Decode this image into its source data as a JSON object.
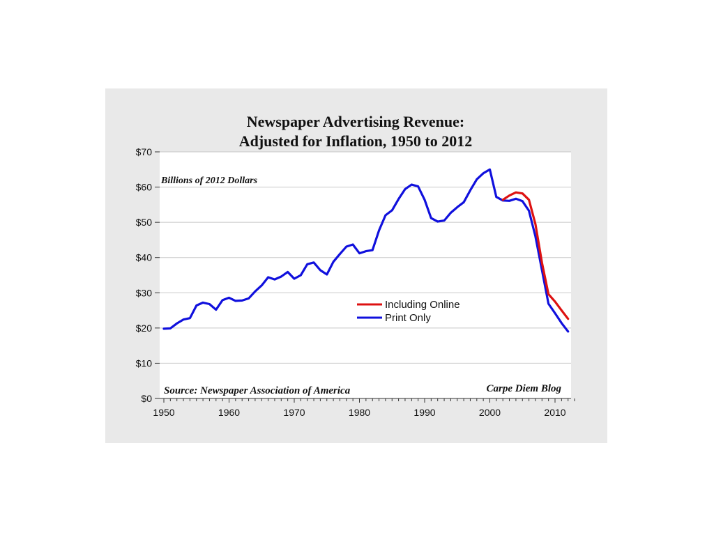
{
  "chart_data": {
    "type": "line",
    "title": "Newspaper Advertising Revenue:",
    "subtitle": "Adjusted for Inflation, 1950 to 2012",
    "units_note": "Billions of 2012 Dollars",
    "source": "Source: Newspaper Association of America",
    "credit": "Carpe Diem Blog",
    "xlabel": "",
    "ylabel": "",
    "xlim": [
      1950,
      2013
    ],
    "ylim": [
      0,
      70
    ],
    "x_ticks": [
      "1950",
      "1960",
      "1970",
      "1980",
      "1990",
      "2000",
      "2010"
    ],
    "y_ticks": [
      "$0",
      "$10",
      "$20",
      "$30",
      "$40",
      "$50",
      "$60",
      "$70"
    ],
    "grid": true,
    "legend_position": "center-right",
    "series": [
      {
        "name": "Including Online",
        "color": "#dd1111",
        "x": [
          2002,
          2003,
          2004,
          2005,
          2006,
          2007,
          2008,
          2009,
          2010,
          2011,
          2012
        ],
        "y": [
          56.4,
          57.6,
          58.5,
          58.2,
          56.4,
          49.5,
          38.5,
          29.6,
          27.5,
          25.0,
          22.6
        ]
      },
      {
        "name": "Print Only",
        "color": "#1010dd",
        "x": [
          1950,
          1951,
          1952,
          1953,
          1954,
          1955,
          1956,
          1957,
          1958,
          1959,
          1960,
          1961,
          1962,
          1963,
          1964,
          1965,
          1966,
          1967,
          1968,
          1969,
          1970,
          1971,
          1972,
          1973,
          1974,
          1975,
          1976,
          1977,
          1978,
          1979,
          1980,
          1981,
          1982,
          1983,
          1984,
          1985,
          1986,
          1987,
          1988,
          1989,
          1990,
          1991,
          1992,
          1993,
          1994,
          1995,
          1996,
          1997,
          1998,
          1999,
          2000,
          2001,
          2002,
          2003,
          2004,
          2005,
          2006,
          2007,
          2008,
          2009,
          2010,
          2011,
          2012
        ],
        "y": [
          19.8,
          19.9,
          21.3,
          22.4,
          22.8,
          26.4,
          27.2,
          26.8,
          25.2,
          27.9,
          28.6,
          27.7,
          27.8,
          28.4,
          30.4,
          32.1,
          34.4,
          33.8,
          34.6,
          35.9,
          34.0,
          35.0,
          38.1,
          38.6,
          36.4,
          35.2,
          38.8,
          41.0,
          43.1,
          43.7,
          41.2,
          41.8,
          42.1,
          47.7,
          52.0,
          53.4,
          56.6,
          59.4,
          60.7,
          60.2,
          56.4,
          51.2,
          50.2,
          50.5,
          52.7,
          54.3,
          55.7,
          59.1,
          62.2,
          63.9,
          65.0,
          57.2,
          56.2,
          56.1,
          56.7,
          56.0,
          53.3,
          46.0,
          36.4,
          26.9,
          24.2,
          21.4,
          19.0
        ]
      }
    ]
  }
}
